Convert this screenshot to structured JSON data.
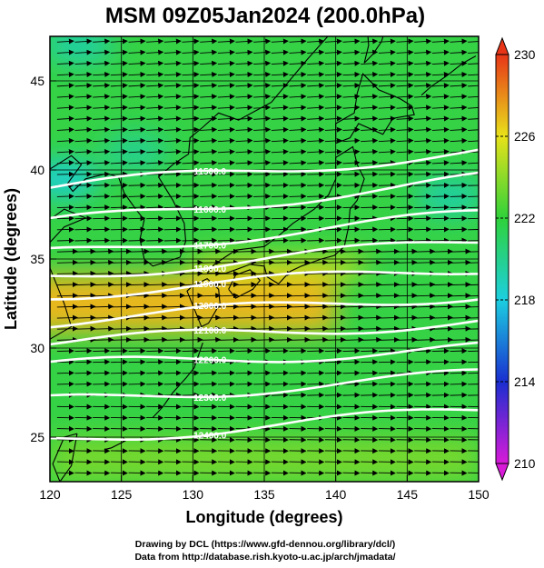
{
  "chart_data": {
    "type": "heatmap",
    "title": "MSM 09Z05Jan2024 (200.0hPa)",
    "xlabel": "Longitude (degrees)",
    "ylabel": "Latitude (degrees)",
    "xlim": [
      120,
      150
    ],
    "ylim": [
      22.5,
      47.5
    ],
    "xticks": [
      120,
      125,
      130,
      135,
      140,
      145,
      150
    ],
    "yticks": [
      25,
      30,
      35,
      40,
      45
    ],
    "grid": true,
    "colorbar": {
      "min": 210,
      "max": 230,
      "ticks": [
        210,
        214,
        218,
        222,
        226,
        230
      ],
      "extend": "both",
      "placement": "right"
    },
    "temperature_field": {
      "approx_range": [
        217,
        228
      ],
      "warm_band": {
        "lat": 32.5,
        "lon_range": [
          120,
          140
        ],
        "value": 227
      },
      "cool_spots": [
        {
          "lon": 121,
          "lat": 39.5,
          "value": 218.5
        },
        {
          "lon": 126,
          "lat": 41,
          "value": 220
        },
        {
          "lon": 148,
          "lat": 38.5,
          "value": 219.5
        },
        {
          "lon": 122,
          "lat": 47,
          "value": 219.5
        }
      ]
    },
    "geopotential_height_contours": [
      {
        "value": 11500.0,
        "label": "11500.0",
        "approx_lat_at_lon120": 39.0,
        "approx_lat_at_lon150": 41.0
      },
      {
        "value": 11600.0,
        "label": "11600.0",
        "approx_lat_at_lon120": 37.0,
        "approx_lat_at_lon150": 39.5
      },
      {
        "value": 11700.0,
        "label": "11700.0",
        "approx_lat_at_lon120": 35.3,
        "approx_lat_at_lon150": 37.5
      },
      {
        "value": 11800.0,
        "label": "11800.0",
        "approx_lat_at_lon120": 34.0,
        "approx_lat_at_lon150": 36.0
      },
      {
        "value": 11900.0,
        "label": "11900.0",
        "approx_lat_at_lon120": 33.0,
        "approx_lat_at_lon150": 34.5
      },
      {
        "value": 12000.0,
        "label": "12000.0",
        "approx_lat_at_lon120": 31.5,
        "approx_lat_at_lon150": 33.0
      },
      {
        "value": 12100.0,
        "label": "12100.0",
        "approx_lat_at_lon120": 30.3,
        "approx_lat_at_lon150": 31.5
      },
      {
        "value": 12200.0,
        "label": "12200.0",
        "approx_lat_at_lon120": 29.0,
        "approx_lat_at_lon150": 30.0
      },
      {
        "value": 12300.0,
        "label": "12300.0",
        "approx_lat_at_lon120": 27.0,
        "approx_lat_at_lon150": 28.5
      },
      {
        "value": 12400.0,
        "label": "12400.0",
        "approx_lat_at_lon120": 24.8,
        "approx_lat_at_lon150": 26.5
      }
    ],
    "wind": {
      "prevailing_direction": "westerly",
      "stronger_lat_range": [
        30,
        36
      ]
    }
  },
  "credits": {
    "line1": "Drawing by DCL (https://www.gfd-dennou.org/library/dcl/)",
    "line2": "Data from http://database.rish.kyoto-u.ac.jp/arch/jmadata/"
  },
  "colors": {
    "c210": "#d81bd8",
    "c214": "#1a2fd0",
    "c218": "#1ccfe0",
    "c222": "#2fd23a",
    "c226": "#e8e21a",
    "c230": "#e83518",
    "contour": "#ffffff",
    "coast": "#000000"
  }
}
